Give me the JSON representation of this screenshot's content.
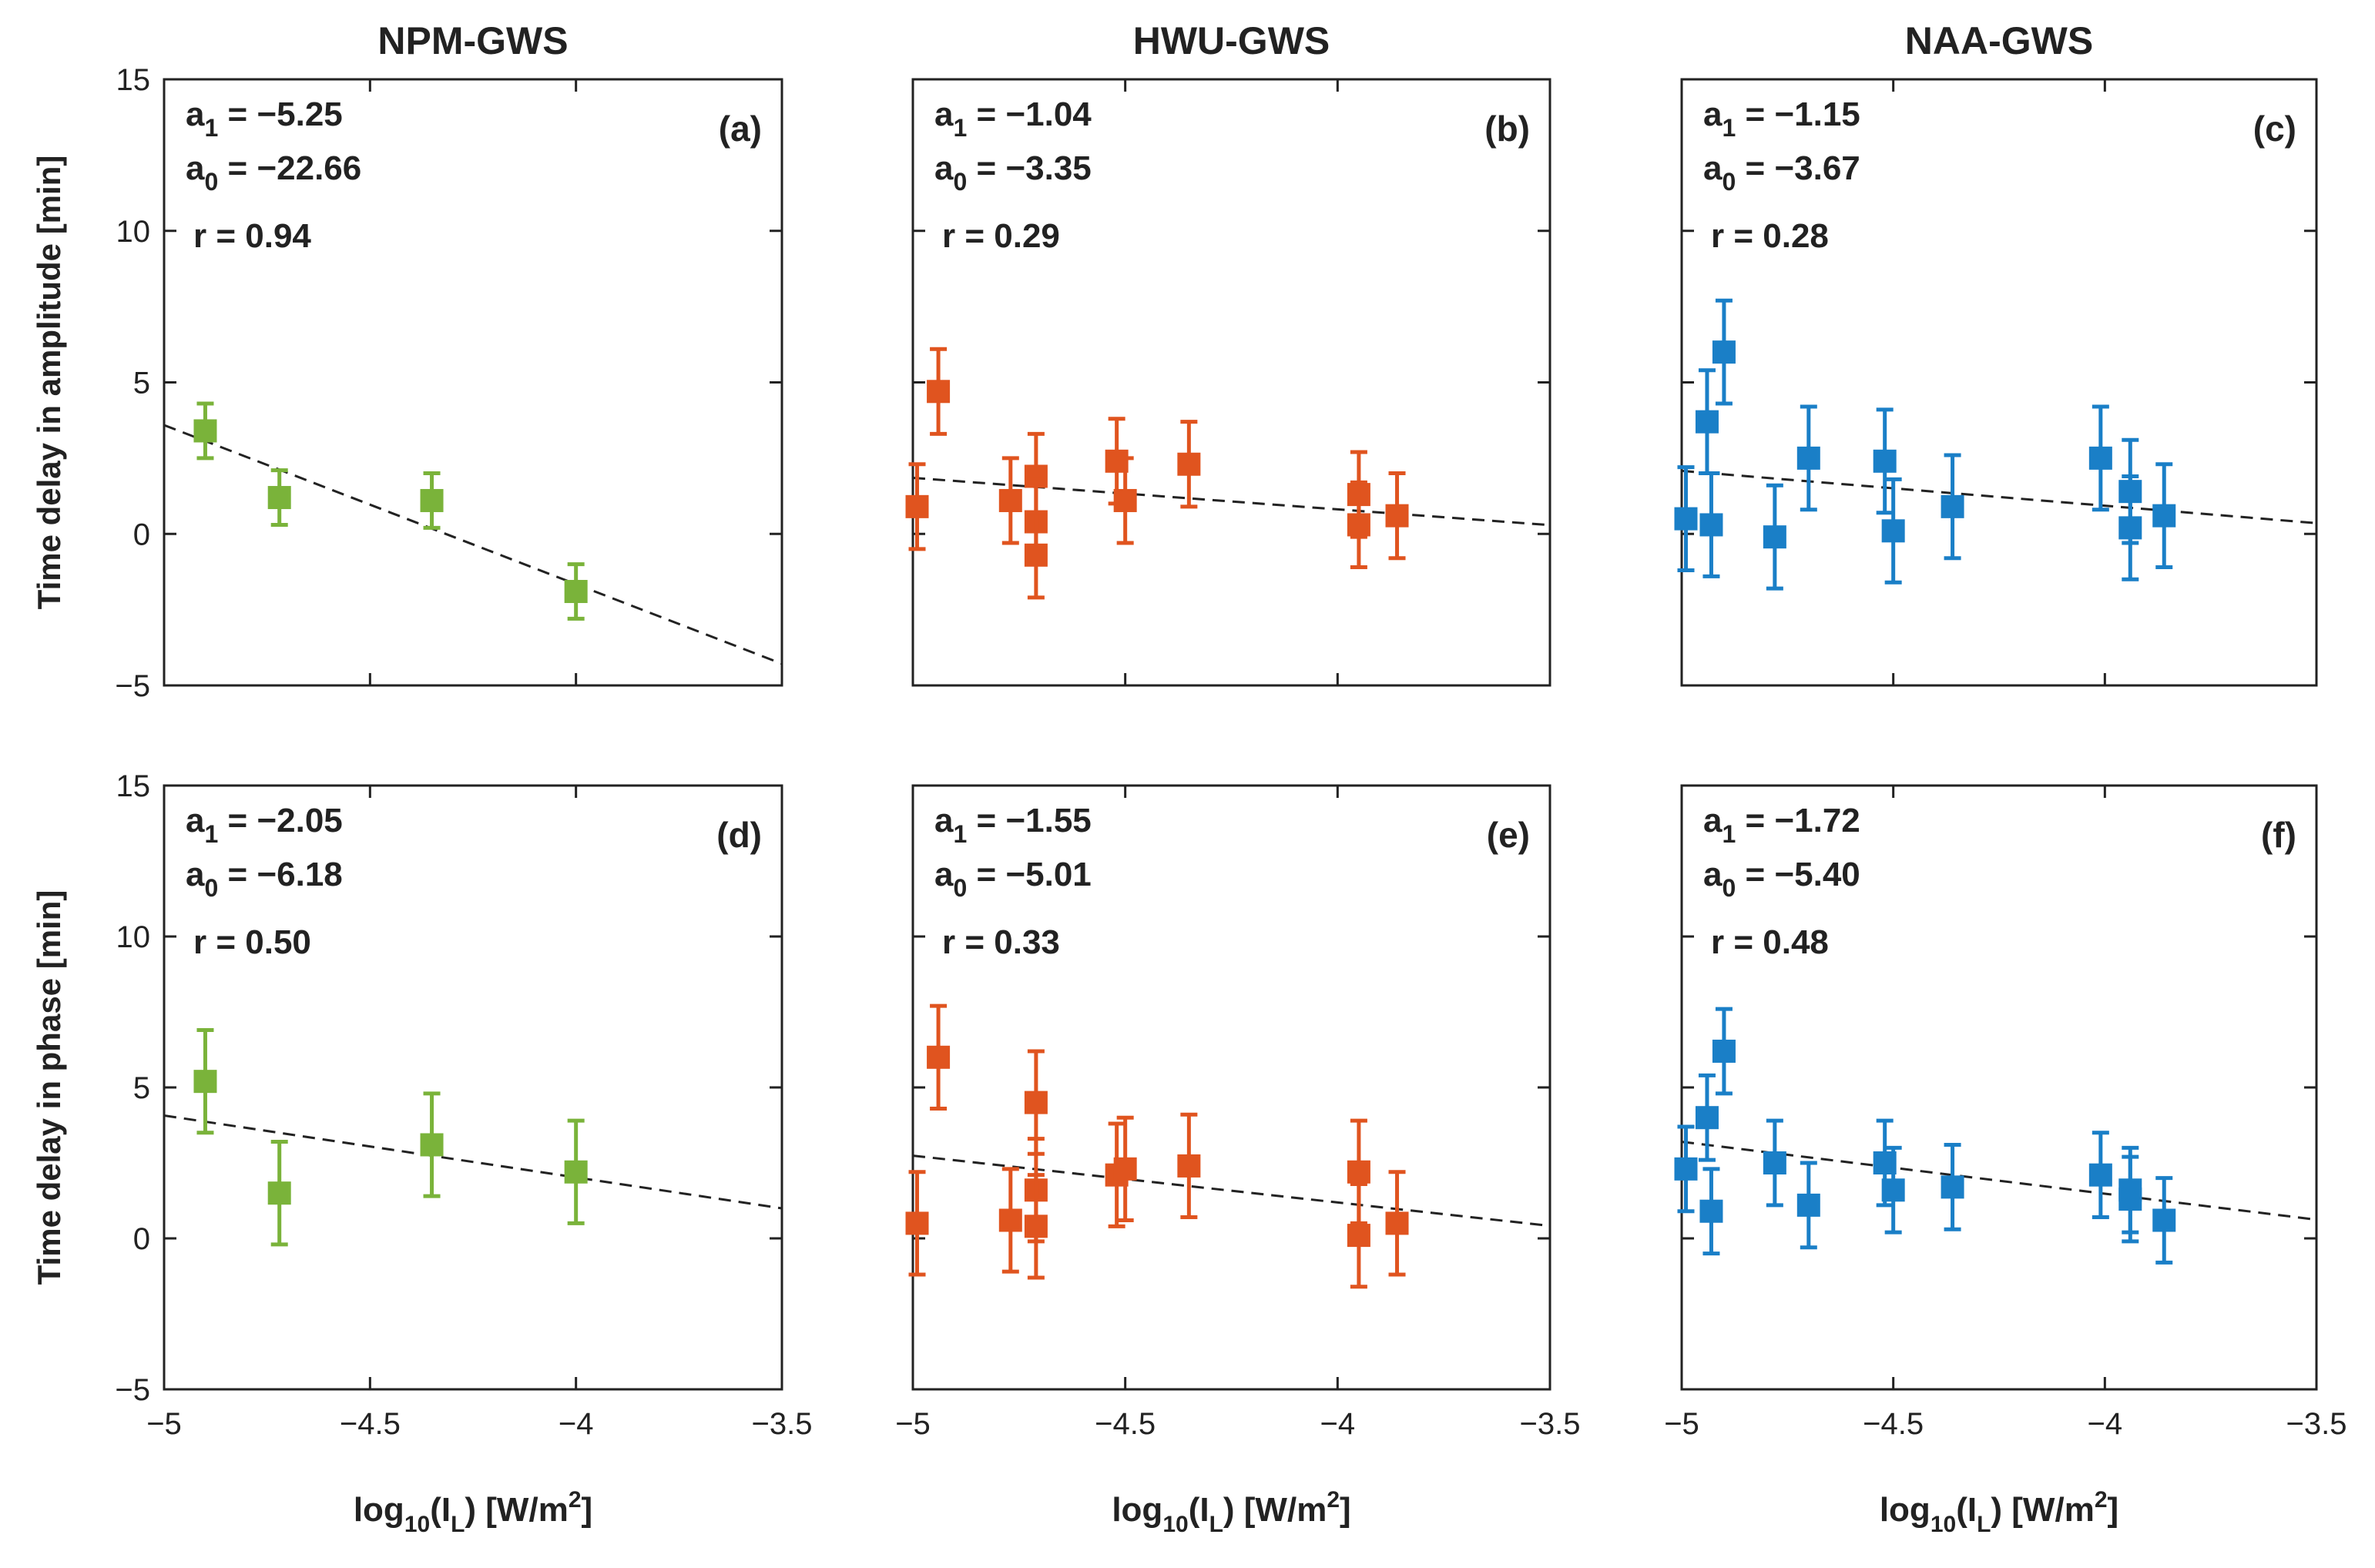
{
  "colors": {
    "npm": "#7ab33a",
    "hwu": "#e0541f",
    "naa": "#1a7fc7",
    "fit": "#222222"
  },
  "chart_data": {
    "type": "scatter",
    "column_titles": [
      "NPM-GWS",
      "HWU-GWS",
      "NAA-GWS"
    ],
    "row_ylabels": [
      "Time delay in amplitude [min]",
      "Time delay in phase [min]"
    ],
    "xlabel": {
      "main": "log",
      "sub1": "10",
      "mid": "(I",
      "sub2": "L",
      "post": ") [W/m",
      "sup": "2",
      "end": "]"
    },
    "xlim": [
      -5,
      -3.5
    ],
    "ylim": [
      -5,
      15
    ],
    "xticks": [
      -5,
      -4.5,
      -4,
      -3.5
    ],
    "xtick_labels": [
      "−5",
      "−4.5",
      "−4",
      "−3.5"
    ],
    "yticks": [
      -5,
      0,
      5,
      10,
      15
    ],
    "ytick_labels": [
      "−5",
      "0",
      "5",
      "10",
      "15"
    ],
    "panels": [
      {
        "label": "(a)",
        "row": 0,
        "col": 0,
        "color_key": "npm",
        "a1_label": "a",
        "a1_sub": "1",
        "a1_value": " = −5.25",
        "a0_label": "a",
        "a0_sub": "0",
        "a0_value": " = −22.66",
        "r_text": "r = 0.94",
        "fit": {
          "a1": -5.25,
          "a0": -22.66
        },
        "points": [
          {
            "x": -4.9,
            "y": 3.4,
            "err": 0.9
          },
          {
            "x": -4.72,
            "y": 1.2,
            "err": 0.9
          },
          {
            "x": -4.35,
            "y": 1.1,
            "err": 0.9
          },
          {
            "x": -4.0,
            "y": -1.9,
            "err": 0.9
          }
        ]
      },
      {
        "label": "(b)",
        "row": 0,
        "col": 1,
        "color_key": "hwu",
        "a1_label": "a",
        "a1_sub": "1",
        "a1_value": " = −1.04",
        "a0_label": "a",
        "a0_sub": "0",
        "a0_value": " = −3.35",
        "r_text": "r = 0.29",
        "fit": {
          "a1": -1.04,
          "a0": -3.35
        },
        "points": [
          {
            "x": -4.99,
            "y": 0.9,
            "err": 1.4
          },
          {
            "x": -4.94,
            "y": 4.7,
            "err": 1.4
          },
          {
            "x": -4.77,
            "y": 1.1,
            "err": 1.4
          },
          {
            "x": -4.71,
            "y": 1.9,
            "err": 1.4
          },
          {
            "x": -4.71,
            "y": 0.4,
            "err": 1.4
          },
          {
            "x": -4.71,
            "y": -0.7,
            "err": 1.4
          },
          {
            "x": -4.52,
            "y": 2.4,
            "err": 1.4
          },
          {
            "x": -4.5,
            "y": 1.1,
            "err": 1.4
          },
          {
            "x": -4.35,
            "y": 2.3,
            "err": 1.4
          },
          {
            "x": -3.95,
            "y": 1.3,
            "err": 1.4
          },
          {
            "x": -3.95,
            "y": 0.3,
            "err": 1.4
          },
          {
            "x": -3.86,
            "y": 0.6,
            "err": 1.4
          }
        ]
      },
      {
        "label": "(c)",
        "row": 0,
        "col": 2,
        "color_key": "naa",
        "a1_label": "a",
        "a1_sub": "1",
        "a1_value": " = −1.15",
        "a0_label": "a",
        "a0_sub": "0",
        "a0_value": " = −3.67",
        "r_text": "r = 0.28",
        "fit": {
          "a1": -1.15,
          "a0": -3.67
        },
        "points": [
          {
            "x": -4.99,
            "y": 0.5,
            "err": 1.7
          },
          {
            "x": -4.94,
            "y": 3.7,
            "err": 1.7
          },
          {
            "x": -4.93,
            "y": 0.3,
            "err": 1.7
          },
          {
            "x": -4.9,
            "y": 6.0,
            "err": 1.7
          },
          {
            "x": -4.78,
            "y": -0.1,
            "err": 1.7
          },
          {
            "x": -4.7,
            "y": 2.5,
            "err": 1.7
          },
          {
            "x": -4.52,
            "y": 2.4,
            "err": 1.7
          },
          {
            "x": -4.5,
            "y": 0.1,
            "err": 1.7
          },
          {
            "x": -4.36,
            "y": 0.9,
            "err": 1.7
          },
          {
            "x": -4.01,
            "y": 2.5,
            "err": 1.7
          },
          {
            "x": -3.94,
            "y": 1.4,
            "err": 1.7
          },
          {
            "x": -3.94,
            "y": 0.2,
            "err": 1.7
          },
          {
            "x": -3.86,
            "y": 0.6,
            "err": 1.7
          }
        ]
      },
      {
        "label": "(d)",
        "row": 1,
        "col": 0,
        "color_key": "npm",
        "a1_label": "a",
        "a1_sub": "1",
        "a1_value": " = −2.05",
        "a0_label": "a",
        "a0_sub": "0",
        "a0_value": " = −6.18",
        "r_text": "r = 0.50",
        "fit": {
          "a1": -2.05,
          "a0": -6.18
        },
        "points": [
          {
            "x": -4.9,
            "y": 5.2,
            "err": 1.7
          },
          {
            "x": -4.72,
            "y": 1.5,
            "err": 1.7
          },
          {
            "x": -4.35,
            "y": 3.1,
            "err": 1.7
          },
          {
            "x": -4.0,
            "y": 2.2,
            "err": 1.7
          }
        ]
      },
      {
        "label": "(e)",
        "row": 1,
        "col": 1,
        "color_key": "hwu",
        "a1_label": "a",
        "a1_sub": "1",
        "a1_value": " = −1.55",
        "a0_label": "a",
        "a0_sub": "0",
        "a0_value": " = −5.01",
        "r_text": "r = 0.33",
        "fit": {
          "a1": -1.55,
          "a0": -5.01
        },
        "points": [
          {
            "x": -4.99,
            "y": 0.5,
            "err": 1.7
          },
          {
            "x": -4.94,
            "y": 6.0,
            "err": 1.7
          },
          {
            "x": -4.77,
            "y": 0.6,
            "err": 1.7
          },
          {
            "x": -4.71,
            "y": 4.5,
            "err": 1.7
          },
          {
            "x": -4.71,
            "y": 1.6,
            "err": 1.7
          },
          {
            "x": -4.71,
            "y": 0.4,
            "err": 1.7
          },
          {
            "x": -4.52,
            "y": 2.1,
            "err": 1.7
          },
          {
            "x": -4.5,
            "y": 2.3,
            "err": 1.7
          },
          {
            "x": -4.35,
            "y": 2.4,
            "err": 1.7
          },
          {
            "x": -3.95,
            "y": 2.2,
            "err": 1.7
          },
          {
            "x": -3.95,
            "y": 0.1,
            "err": 1.7
          },
          {
            "x": -3.86,
            "y": 0.5,
            "err": 1.7
          }
        ]
      },
      {
        "label": "(f)",
        "row": 1,
        "col": 2,
        "color_key": "naa",
        "a1_label": "a",
        "a1_sub": "1",
        "a1_value": " = −1.72",
        "a0_label": "a",
        "a0_sub": "0",
        "a0_value": " = −5.40",
        "r_text": "r = 0.48",
        "fit": {
          "a1": -1.72,
          "a0": -5.4
        },
        "points": [
          {
            "x": -4.99,
            "y": 2.3,
            "err": 1.4
          },
          {
            "x": -4.94,
            "y": 4.0,
            "err": 1.4
          },
          {
            "x": -4.93,
            "y": 0.9,
            "err": 1.4
          },
          {
            "x": -4.9,
            "y": 6.2,
            "err": 1.4
          },
          {
            "x": -4.78,
            "y": 2.5,
            "err": 1.4
          },
          {
            "x": -4.7,
            "y": 1.1,
            "err": 1.4
          },
          {
            "x": -4.52,
            "y": 2.5,
            "err": 1.4
          },
          {
            "x": -4.5,
            "y": 1.6,
            "err": 1.4
          },
          {
            "x": -4.36,
            "y": 1.7,
            "err": 1.4
          },
          {
            "x": -4.01,
            "y": 2.1,
            "err": 1.4
          },
          {
            "x": -3.94,
            "y": 1.6,
            "err": 1.4
          },
          {
            "x": -3.94,
            "y": 1.3,
            "err": 1.4
          },
          {
            "x": -3.86,
            "y": 0.6,
            "err": 1.4
          }
        ]
      }
    ]
  }
}
